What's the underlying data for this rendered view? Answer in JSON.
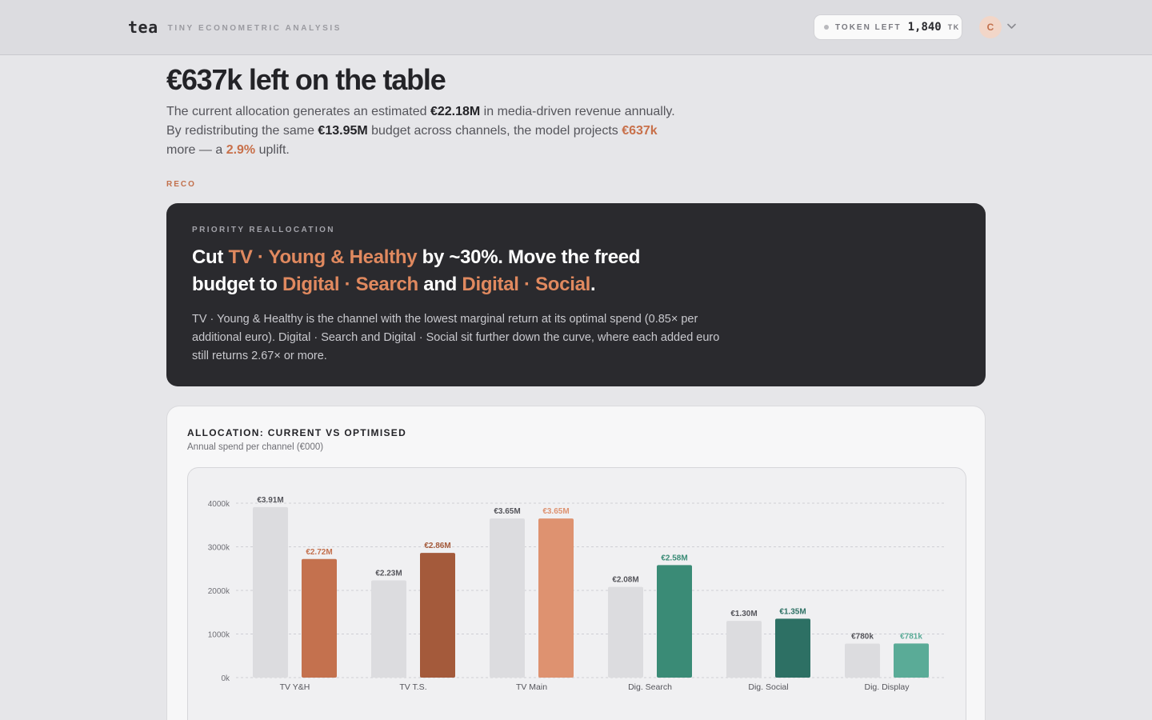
{
  "header": {
    "brand": "tea",
    "brand_subtitle": "TINY ECONOMETRIC ANALYSIS",
    "token_label": "TOKEN LEFT",
    "token_value": "1,840",
    "token_unit": "TK",
    "avatar_initial": "C"
  },
  "hero": {
    "title": "€637k left on the table",
    "line1_pre": "The current allocation generates an estimated ",
    "line1_value": "€22.18M",
    "line1_post": " in media-driven revenue annually.",
    "line2_pre": "By redistributing the same ",
    "line2_value": "€13.95M",
    "line2_mid": " budget across channels, the model projects ",
    "line2_gain": "€637k",
    "line3_pre": "more — a ",
    "line3_pct": "2.9%",
    "line3_post": " uplift."
  },
  "reco": {
    "section_label": "RECO",
    "eyebrow": "PRIORITY REALLOCATION",
    "h_pre": "Cut ",
    "h_cut_channel": "TV · Young & Healthy",
    "h_mid": " by ~30%. Move the freed budget to ",
    "h_target_1": "Digital · Search",
    "h_and": " and ",
    "h_target_2": "Digital · Social",
    "h_end": ".",
    "body": "TV · Young & Healthy is the channel with the lowest marginal return at its optimal spend (0.85× per additional euro). Digital · Search and Digital · Social sit further down the curve, where each added euro still returns 2.67× or more."
  },
  "chart_card": {
    "title": "ALLOCATION: CURRENT VS OPTIMISED",
    "subtitle": "Annual spend per channel (€000)"
  },
  "chart_data": {
    "type": "bar",
    "ylim": [
      0,
      4000
    ],
    "yticks": [
      0,
      1000,
      2000,
      3000,
      4000
    ],
    "ytick_labels": [
      "0k",
      "1000k",
      "2000k",
      "3000k",
      "4000k"
    ],
    "grid": true,
    "categories": [
      "TV Y&H",
      "TV T.S.",
      "TV Main",
      "Dig. Search",
      "Dig. Social",
      "Dig. Display"
    ],
    "series": [
      {
        "values": [
          3910,
          2230,
          3650,
          2080,
          1300,
          780
        ],
        "labels": [
          "€3.91M",
          "€2.23M",
          "€3.65M",
          "€2.08M",
          "€1.30M",
          "€780k"
        ],
        "color": "#dcdcdf",
        "label_color": "#55555b"
      },
      {
        "values": [
          2720,
          2860,
          3650,
          2580,
          1350,
          781
        ],
        "labels": [
          "€2.72M",
          "€2.86M",
          "€3.65M",
          "€2.58M",
          "€1.35M",
          "€781k"
        ],
        "colors": [
          "#c4714e",
          "#a45a3b",
          "#de9270",
          "#3a8b76",
          "#2d7064",
          "#5aab97"
        ],
        "label_colors": [
          "#c4714e",
          "#a45a3b",
          "#de9270",
          "#3a8b76",
          "#2d7064",
          "#5aab97"
        ]
      }
    ]
  },
  "colors": {
    "accent": "#c8704a",
    "dark_card": "#2a2a2e",
    "page_bg": "#e6e6e9"
  }
}
